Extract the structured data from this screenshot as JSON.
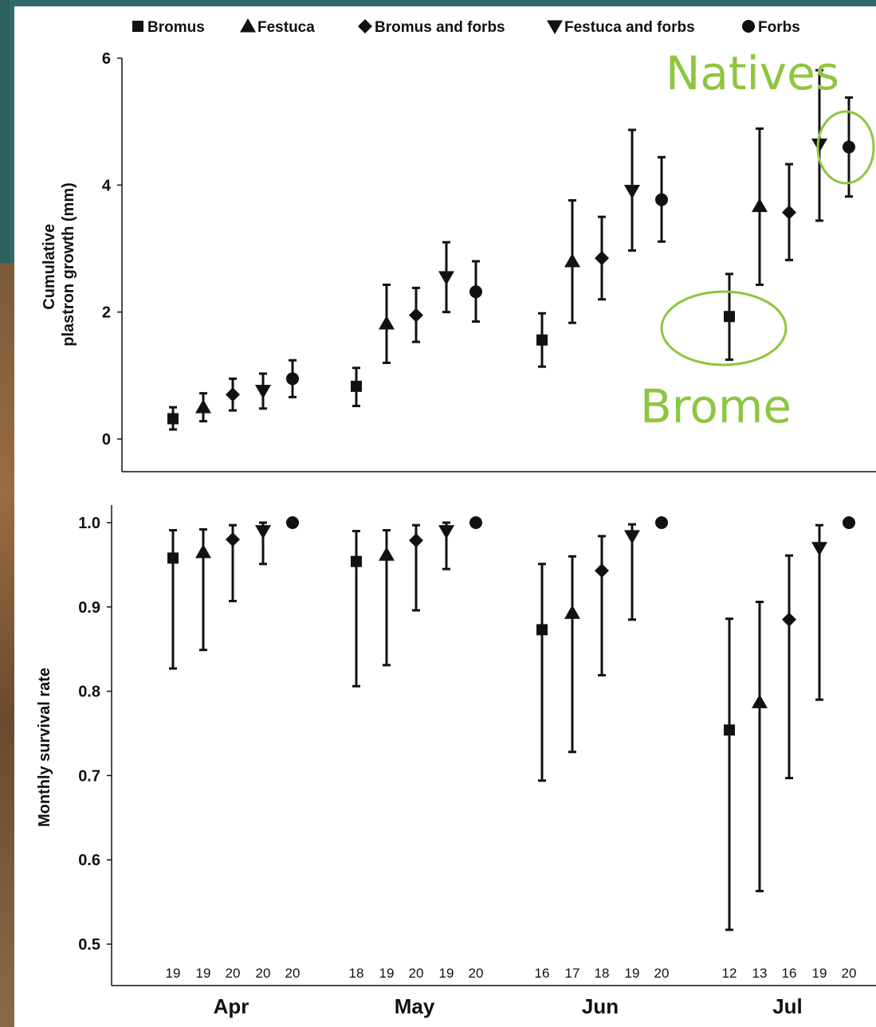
{
  "colors": {
    "marker": "#111111",
    "annotation": "#8dc63f",
    "background": "#2f6b6a",
    "panel": "#ffffff"
  },
  "legend": [
    {
      "label": "Bromus",
      "marker": "square"
    },
    {
      "label": "Festuca",
      "marker": "triangle-up"
    },
    {
      "label": "Bromus and forbs",
      "marker": "diamond"
    },
    {
      "label": "Festuca and forbs",
      "marker": "triangle-down"
    },
    {
      "label": "Forbs",
      "marker": "circle"
    }
  ],
  "annotations": {
    "natives": "Natives",
    "brome": "Brome"
  },
  "chart_data": [
    {
      "type": "scatter",
      "ylabel_line1": "Cumulative",
      "ylabel_line2": "plastron growth (mm)",
      "ylim": [
        0,
        6
      ],
      "yticks": [
        "0",
        "2",
        "4",
        "6"
      ],
      "categories": [
        "Apr",
        "May",
        "Jun",
        "Jul"
      ],
      "series": [
        {
          "name": "Bromus",
          "marker": "square",
          "values": [
            0.32,
            0.83,
            1.56,
            1.93
          ],
          "err_low": [
            0.15,
            0.52,
            1.14,
            1.25
          ],
          "err_high": [
            0.5,
            1.12,
            1.98,
            2.6
          ]
        },
        {
          "name": "Festuca",
          "marker": "triangle-up",
          "values": [
            0.5,
            1.82,
            2.8,
            3.67
          ],
          "err_low": [
            0.28,
            1.2,
            1.83,
            2.43
          ],
          "err_high": [
            0.72,
            2.43,
            3.76,
            4.89
          ]
        },
        {
          "name": "Bromus and forbs",
          "marker": "diamond",
          "values": [
            0.7,
            1.95,
            2.85,
            3.57
          ],
          "err_low": [
            0.45,
            1.53,
            2.2,
            2.82
          ],
          "err_high": [
            0.95,
            2.38,
            3.5,
            4.33
          ]
        },
        {
          "name": "Festuca and forbs",
          "marker": "triangle-down",
          "values": [
            0.76,
            2.55,
            3.91,
            4.64
          ],
          "err_low": [
            0.48,
            2.0,
            2.97,
            3.44
          ],
          "err_high": [
            1.03,
            3.1,
            4.87,
            5.81
          ]
        },
        {
          "name": "Forbs",
          "marker": "circle",
          "values": [
            0.95,
            2.32,
            3.77,
            4.6
          ],
          "err_low": [
            0.66,
            1.85,
            3.11,
            3.82
          ],
          "err_high": [
            1.24,
            2.8,
            4.44,
            5.38
          ]
        }
      ]
    },
    {
      "type": "scatter",
      "ylabel": "Monthly survival rate",
      "ylim": [
        0.5,
        1.0
      ],
      "yticks": [
        "0.5",
        "0.6",
        "0.7",
        "0.8",
        "0.9",
        "1.0"
      ],
      "categories": [
        "Apr",
        "May",
        "Jun",
        "Jul"
      ],
      "sample_sizes": [
        [
          "19",
          "19",
          "20",
          "20",
          "20"
        ],
        [
          "18",
          "19",
          "20",
          "19",
          "20"
        ],
        [
          "16",
          "17",
          "18",
          "19",
          "20"
        ],
        [
          "12",
          "13",
          "16",
          "19",
          "20"
        ]
      ],
      "series": [
        {
          "name": "Bromus",
          "marker": "square",
          "values": [
            0.958,
            0.954,
            0.873,
            0.754
          ],
          "err_low": [
            0.827,
            0.806,
            0.694,
            0.517
          ],
          "err_high": [
            0.991,
            0.99,
            0.951,
            0.886
          ]
        },
        {
          "name": "Festuca",
          "marker": "triangle-up",
          "values": [
            0.965,
            0.962,
            0.893,
            0.787
          ],
          "err_low": [
            0.849,
            0.831,
            0.728,
            0.563
          ],
          "err_high": [
            0.992,
            0.991,
            0.96,
            0.906
          ]
        },
        {
          "name": "Bromus and forbs",
          "marker": "diamond",
          "values": [
            0.98,
            0.979,
            0.943,
            0.885
          ],
          "err_low": [
            0.907,
            0.896,
            0.819,
            0.697
          ],
          "err_high": [
            0.997,
            0.997,
            0.984,
            0.961
          ]
        },
        {
          "name": "Festuca and forbs",
          "marker": "triangle-down",
          "values": [
            0.99,
            0.99,
            0.984,
            0.97
          ],
          "err_low": [
            0.951,
            0.945,
            0.885,
            0.79
          ],
          "err_high": [
            1.0,
            1.0,
            0.998,
            0.997
          ]
        },
        {
          "name": "Forbs",
          "marker": "circle",
          "values": [
            1.0,
            1.0,
            1.0,
            1.0
          ],
          "err_low": [
            1.0,
            1.0,
            1.0,
            1.0
          ],
          "err_high": [
            1.0,
            1.0,
            1.0,
            1.0
          ]
        }
      ]
    }
  ]
}
